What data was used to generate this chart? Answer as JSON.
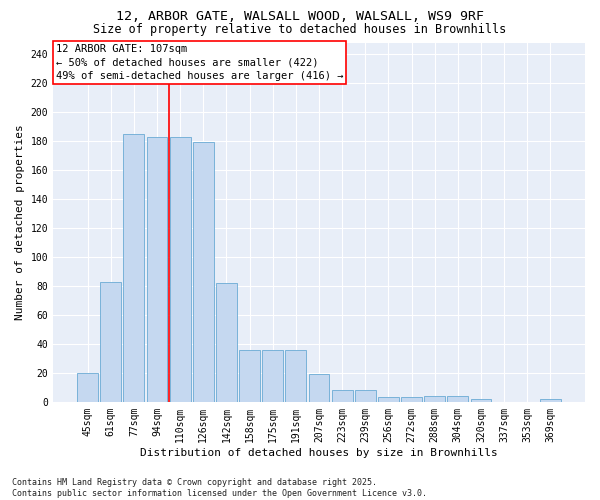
{
  "title1": "12, ARBOR GATE, WALSALL WOOD, WALSALL, WS9 9RF",
  "title2": "Size of property relative to detached houses in Brownhills",
  "xlabel": "Distribution of detached houses by size in Brownhills",
  "ylabel": "Number of detached properties",
  "categories": [
    "45sqm",
    "61sqm",
    "77sqm",
    "94sqm",
    "110sqm",
    "126sqm",
    "142sqm",
    "158sqm",
    "175sqm",
    "191sqm",
    "207sqm",
    "223sqm",
    "239sqm",
    "256sqm",
    "272sqm",
    "288sqm",
    "304sqm",
    "320sqm",
    "337sqm",
    "353sqm",
    "369sqm"
  ],
  "values": [
    20,
    83,
    185,
    183,
    183,
    179,
    82,
    36,
    36,
    36,
    19,
    8,
    8,
    3,
    3,
    4,
    4,
    2,
    0,
    0,
    2
  ],
  "bar_color": "#c5d8f0",
  "bar_edge_color": "#6aaad4",
  "vline_position": 3.5,
  "vline_color": "red",
  "annotation_text": "12 ARBOR GATE: 107sqm\n← 50% of detached houses are smaller (422)\n49% of semi-detached houses are larger (416) →",
  "annotation_box_color": "white",
  "annotation_box_edge_color": "red",
  "ylim": [
    0,
    248
  ],
  "yticks": [
    0,
    20,
    40,
    60,
    80,
    100,
    120,
    140,
    160,
    180,
    200,
    220,
    240
  ],
  "background_color": "#e8eef8",
  "grid_color": "#ffffff",
  "footer": "Contains HM Land Registry data © Crown copyright and database right 2025.\nContains public sector information licensed under the Open Government Licence v3.0.",
  "title_fontsize": 9.5,
  "subtitle_fontsize": 8.5,
  "axis_label_fontsize": 8,
  "tick_fontsize": 7,
  "annotation_fontsize": 7.5,
  "footer_fontsize": 6
}
